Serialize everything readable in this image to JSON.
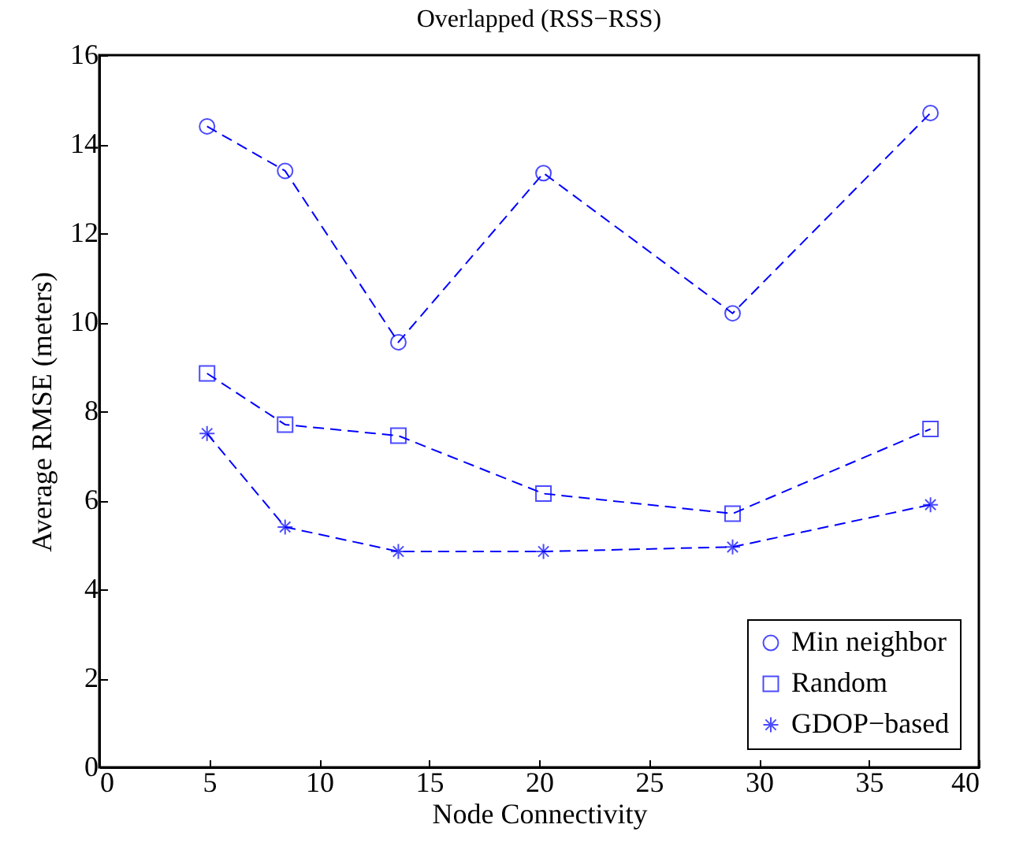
{
  "chart_data": {
    "type": "line",
    "title": "Overlapped (RSS−RSS)",
    "xlabel": "Node Connectivity",
    "ylabel": "Average RMSE (meters)",
    "x": [
      4.9,
      8.45,
      13.6,
      20.2,
      28.8,
      37.8
    ],
    "series": [
      {
        "name": "Min neighbor",
        "color": "#0000ff",
        "marker": "circle",
        "values": [
          14.4,
          13.4,
          9.55,
          13.35,
          10.2,
          14.7
        ]
      },
      {
        "name": "Random",
        "color": "#0000ff",
        "marker": "square",
        "values": [
          8.85,
          7.7,
          7.45,
          6.15,
          5.7,
          7.6
        ]
      },
      {
        "name": "GDOP−based",
        "color": "#0000ff",
        "marker": "cross",
        "values": [
          7.5,
          5.4,
          4.85,
          4.85,
          4.95,
          5.9
        ]
      }
    ],
    "xlim": [
      0,
      40
    ],
    "xticks": [
      0,
      5,
      10,
      15,
      20,
      25,
      30,
      35,
      40
    ],
    "ylim": [
      0,
      16
    ],
    "yticks": [
      0,
      2,
      4,
      6,
      8,
      10,
      12,
      14,
      16
    ],
    "grid": false,
    "legend": "bottom right",
    "line_style": "dashed"
  }
}
